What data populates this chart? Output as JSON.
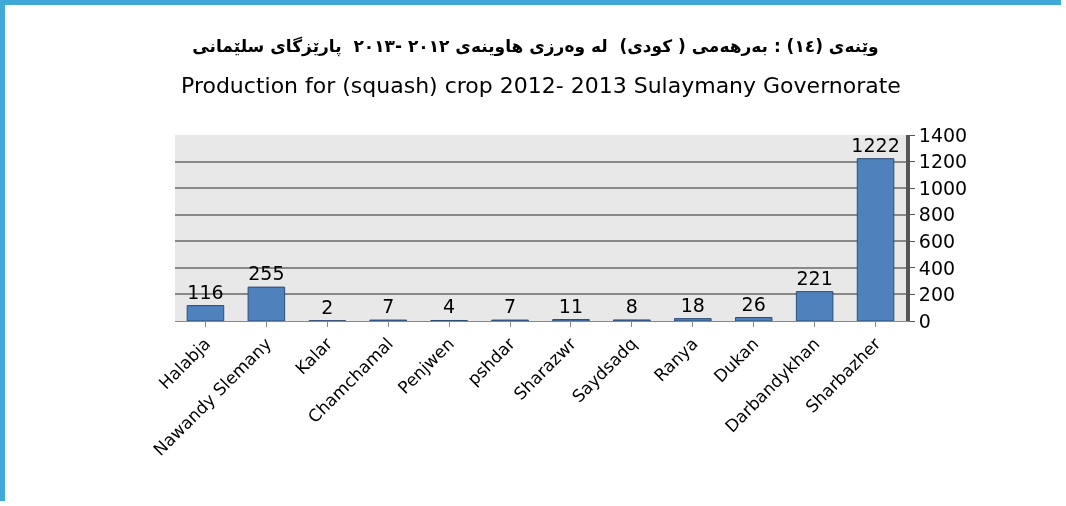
{
  "chart_data": {
    "type": "bar",
    "title": "وێنەی (١٤) : بەرهەمی ( کودی)  لە وەرزی هاوینەی ٢٠١٢ -٢٠١٣  پارێزگای سلێمانی",
    "subtitle": "Production for (squash) crop 2012- 2013 Sulaymany Governorate",
    "categories": [
      "Halabja",
      "Nawandy Slemany",
      "Kalar",
      "Chamchamal",
      "Penjwen",
      "pshdar",
      "Sharazwr",
      "Saydsadq",
      "Ranya",
      "Dukan",
      "Darbandykhan",
      "Sharbazher"
    ],
    "values": [
      116,
      255,
      2,
      7,
      4,
      7,
      11,
      8,
      18,
      26,
      221,
      1222
    ],
    "color": "#4f81bd",
    "ylim": [
      0,
      1400
    ],
    "yticks": [
      0,
      200,
      400,
      600,
      800,
      1000,
      1200,
      1400
    ],
    "grid": "y",
    "data_labels": true
  }
}
